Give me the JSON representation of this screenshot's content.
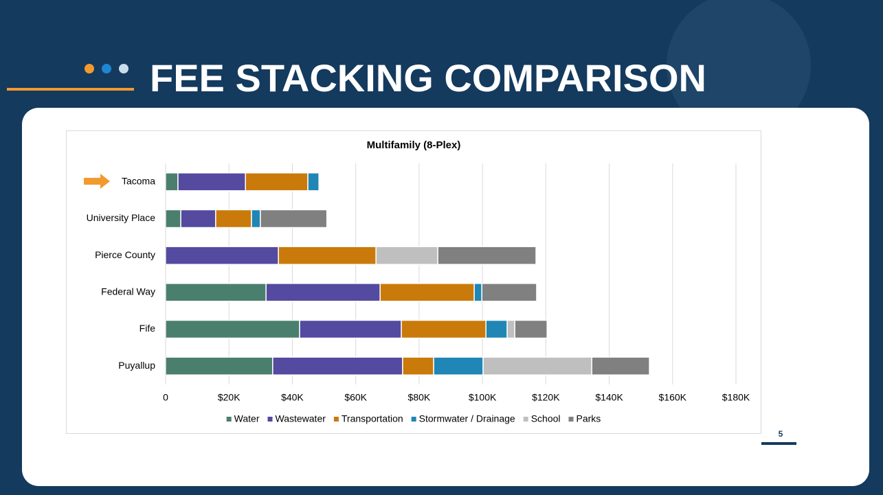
{
  "header": {
    "title": "FEE STACKING COMPARISON"
  },
  "page_number": "5",
  "chart_data": {
    "type": "stacked_barh",
    "title": "Multifamily (8-Plex)",
    "categories": [
      "Tacoma",
      "University Place",
      "Pierce County",
      "Federal Way",
      "Fife",
      "Puyallup"
    ],
    "series": [
      {
        "name": "Water",
        "color": "#4a7f6d",
        "values": [
          3900,
          4800,
          0,
          31700,
          42300,
          33800
        ]
      },
      {
        "name": "Wastewater",
        "color": "#544a9f",
        "values": [
          21300,
          11000,
          35600,
          36000,
          32100,
          41000
        ]
      },
      {
        "name": "Transportation",
        "color": "#c97a0a",
        "values": [
          19700,
          11300,
          30800,
          29700,
          26700,
          9800
        ]
      },
      {
        "name": "Stormwater / Drainage",
        "color": "#1f86b5",
        "values": [
          3500,
          2800,
          0,
          2400,
          6700,
          15600
        ]
      },
      {
        "name": "School",
        "color": "#bfbfbf",
        "values": [
          0,
          0,
          19500,
          0,
          2400,
          34300
        ]
      },
      {
        "name": "Parks",
        "color": "#808080",
        "values": [
          0,
          21000,
          31000,
          17300,
          10200,
          18200
        ]
      }
    ],
    "xlim": [
      0,
      180000
    ],
    "xticks": [
      0,
      {
        "value": 20000,
        "label": "$20K"
      },
      {
        "value": 40000,
        "label": "$40K"
      },
      {
        "value": 60000,
        "label": "$60K"
      },
      {
        "value": 80000,
        "label": "$80K"
      },
      {
        "value": 100000,
        "label": "$100K"
      },
      {
        "value": 120000,
        "label": "$120K"
      },
      {
        "value": 140000,
        "label": "$140K"
      },
      {
        "value": 160000,
        "label": "$160K"
      },
      {
        "value": 180000,
        "label": "$180K"
      }
    ],
    "grid": true,
    "legend": "bottom"
  }
}
